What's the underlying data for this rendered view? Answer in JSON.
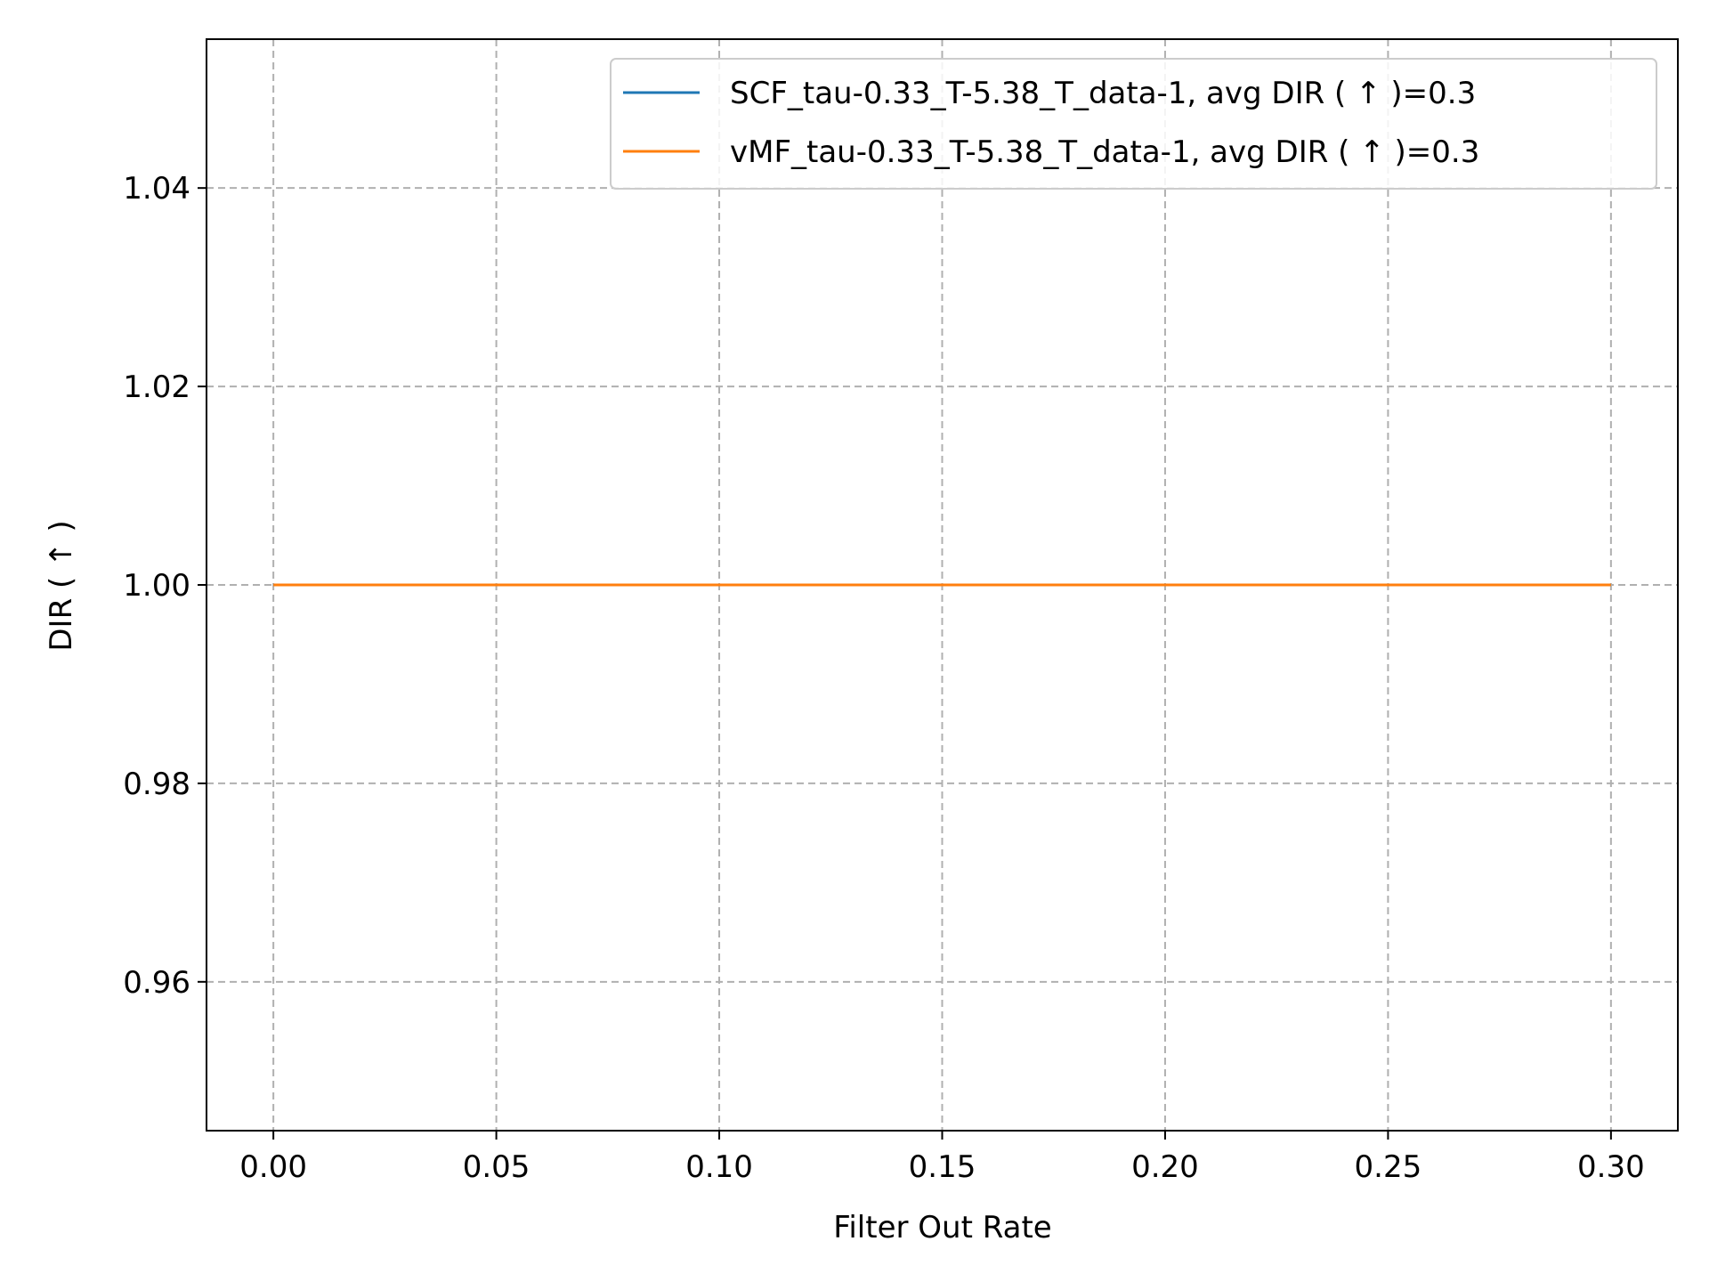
{
  "chart_data": {
    "type": "line",
    "xlabel": "Filter Out Rate",
    "ylabel": "DIR ( ↑ )",
    "xlim": [
      -0.015,
      0.315
    ],
    "ylim": [
      0.945,
      1.055
    ],
    "xticks": [
      0.0,
      0.05,
      0.1,
      0.15,
      0.2,
      0.25,
      0.3
    ],
    "xtick_labels": [
      "0.00",
      "0.05",
      "0.10",
      "0.15",
      "0.20",
      "0.25",
      "0.30"
    ],
    "yticks": [
      0.96,
      0.98,
      1.0,
      1.02,
      1.04
    ],
    "ytick_labels": [
      "0.96",
      "0.98",
      "1.00",
      "1.02",
      "1.04"
    ],
    "grid": true,
    "legend_position": "upper-right",
    "series": [
      {
        "name": "SCF_tau-0.33_T-5.38_T_data-1, avg DIR ( ↑ )=0.3",
        "color": "#1f77b4",
        "x": [
          0.0,
          0.05,
          0.1,
          0.15,
          0.2,
          0.25,
          0.3
        ],
        "y": [
          1.0,
          1.0,
          1.0,
          1.0,
          1.0,
          1.0,
          1.0
        ]
      },
      {
        "name": "vMF_tau-0.33_T-5.38_T_data-1, avg DIR ( ↑ )=0.3",
        "color": "#ff7f0e",
        "x": [
          0.0,
          0.05,
          0.1,
          0.15,
          0.2,
          0.25,
          0.3
        ],
        "y": [
          1.0,
          1.0,
          1.0,
          1.0,
          1.0,
          1.0,
          1.0
        ]
      }
    ]
  }
}
